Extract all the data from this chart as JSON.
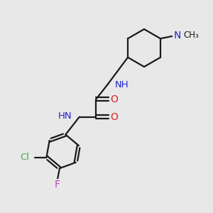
{
  "background_color": "#e8e8e8",
  "bond_color": "#1a1a1a",
  "N_color": "#2222cc",
  "O_color": "#dd2222",
  "Cl_color": "#44aa44",
  "F_color": "#bb44bb",
  "line_width": 1.6,
  "figsize": [
    3.0,
    3.0
  ],
  "dpi": 100,
  "xlim": [
    0,
    10
  ],
  "ylim": [
    0,
    10
  ]
}
